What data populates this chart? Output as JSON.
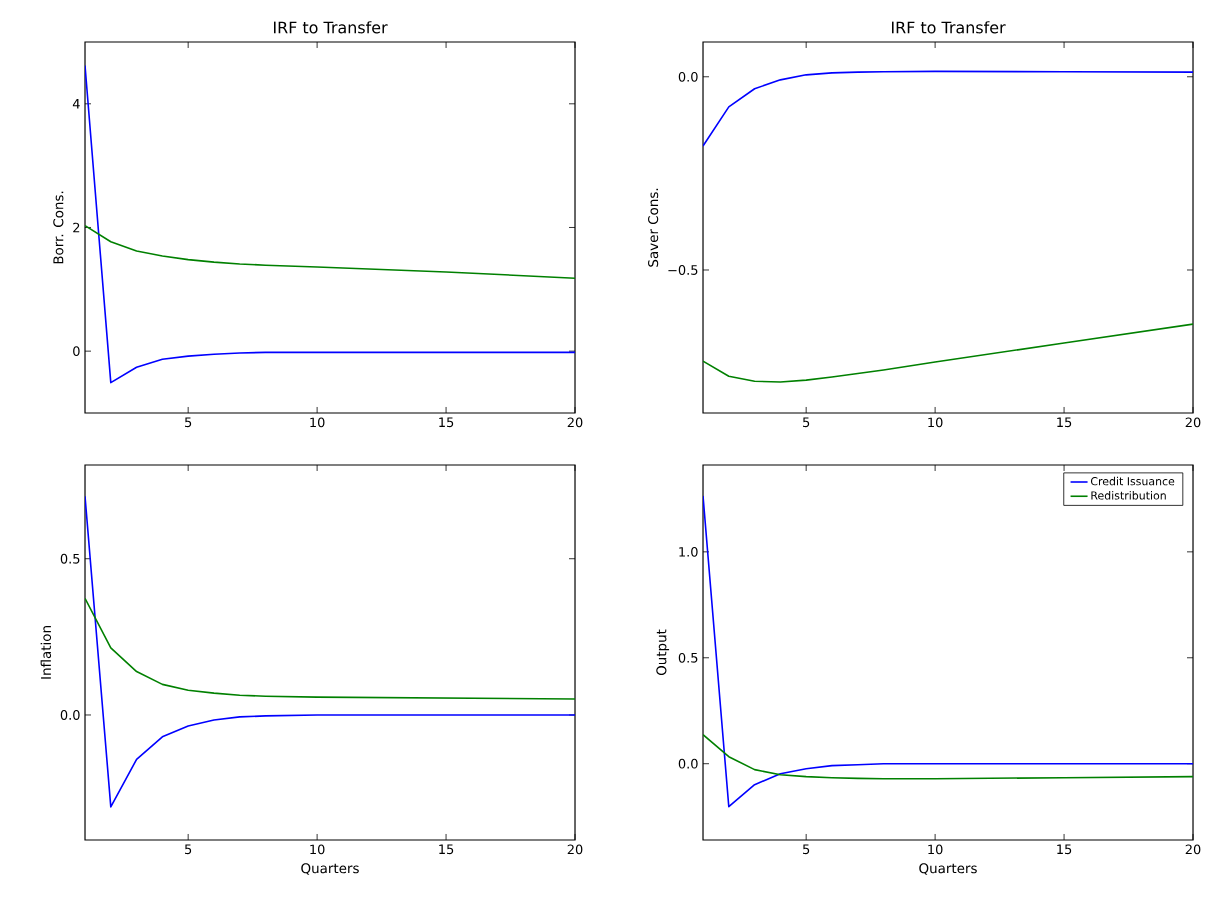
{
  "chart_data": [
    {
      "type": "line",
      "title": "IRF to Transfer",
      "ylabel": "Borr. Cons.",
      "xlim": [
        1,
        20
      ],
      "ylim": [
        -1,
        5
      ],
      "xticks": [
        5,
        10,
        15,
        20
      ],
      "yticks": [
        0,
        2,
        4
      ],
      "x": [
        1,
        2,
        3,
        4,
        5,
        6,
        7,
        8,
        10,
        15,
        20
      ],
      "series": [
        {
          "color": "#0000ff",
          "values": [
            4.62,
            -0.51,
            -0.26,
            -0.13,
            -0.08,
            -0.05,
            -0.03,
            -0.02,
            -0.02,
            -0.02,
            -0.02
          ]
        },
        {
          "color": "#008000",
          "values": [
            2.03,
            1.77,
            1.62,
            1.54,
            1.48,
            1.44,
            1.41,
            1.39,
            1.36,
            1.28,
            1.18
          ]
        }
      ]
    },
    {
      "type": "line",
      "title": "IRF to Transfer",
      "ylabel": "Saver Cons.",
      "xlim": [
        1,
        20
      ],
      "ylim": [
        -0.87,
        0.09
      ],
      "xticks": [
        5,
        10,
        15,
        20
      ],
      "yticks": [
        {
          "value": -0.5,
          "label": "−0.5"
        },
        {
          "value": 0,
          "label": "0.0"
        }
      ],
      "x": [
        1,
        2,
        3,
        4,
        5,
        6,
        7,
        8,
        10,
        15,
        20
      ],
      "series": [
        {
          "color": "#0000ff",
          "values": [
            -0.179,
            -0.078,
            -0.031,
            -0.008,
            0.005,
            0.01,
            0.012,
            0.013,
            0.014,
            0.013,
            0.012
          ]
        },
        {
          "color": "#008000",
          "values": [
            -0.736,
            -0.775,
            -0.788,
            -0.79,
            -0.785,
            -0.777,
            -0.768,
            -0.759,
            -0.738,
            -0.689,
            -0.64
          ]
        }
      ]
    },
    {
      "type": "line",
      "xlabel": "Quarters",
      "ylabel": "Inflation",
      "xlim": [
        1,
        20
      ],
      "ylim": [
        -0.4,
        0.8
      ],
      "xticks": [
        5,
        10,
        15,
        20
      ],
      "yticks": [
        {
          "value": 0,
          "label": "0.0"
        },
        {
          "value": 0.5,
          "label": "0.5"
        }
      ],
      "x": [
        1,
        2,
        3,
        4,
        5,
        6,
        7,
        8,
        10,
        15,
        20
      ],
      "series": [
        {
          "color": "#0000ff",
          "values": [
            0.7,
            -0.294,
            -0.142,
            -0.07,
            -0.035,
            -0.016,
            -0.006,
            -0.003,
            0,
            0,
            0
          ]
        },
        {
          "color": "#008000",
          "values": [
            0.373,
            0.215,
            0.139,
            0.098,
            0.079,
            0.07,
            0.063,
            0.06,
            0.057,
            0.054,
            0.051
          ]
        }
      ]
    },
    {
      "type": "line",
      "xlabel": "Quarters",
      "ylabel": "Output",
      "xlim": [
        1,
        20
      ],
      "ylim": [
        -0.36,
        1.41
      ],
      "xticks": [
        5,
        10,
        15,
        20
      ],
      "yticks": [
        {
          "value": 0,
          "label": "0.0"
        },
        {
          "value": 0.5,
          "label": "0.5"
        },
        {
          "value": 1,
          "label": "1.0"
        }
      ],
      "legend": "top right",
      "x": [
        1,
        2,
        3,
        4,
        5,
        6,
        7,
        8,
        10,
        15,
        20
      ],
      "series": [
        {
          "name": "Credit Issuance",
          "color": "#0000ff",
          "values": [
            1.264,
            -0.203,
            -0.099,
            -0.047,
            -0.024,
            -0.009,
            -0.005,
            0,
            0,
            0,
            0
          ]
        },
        {
          "name": "Redistribution",
          "color": "#008000",
          "values": [
            0.137,
            0.033,
            -0.028,
            -0.052,
            -0.061,
            -0.066,
            -0.069,
            -0.071,
            -0.071,
            -0.066,
            -0.061
          ]
        }
      ]
    }
  ]
}
